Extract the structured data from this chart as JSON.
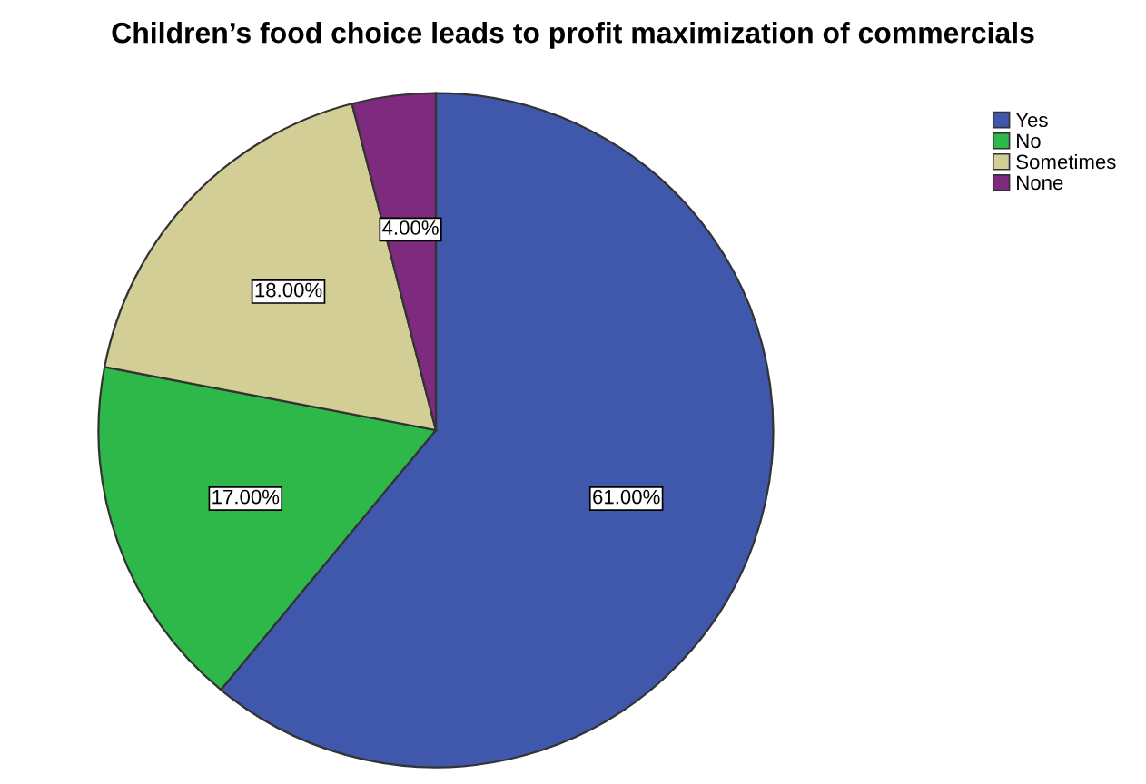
{
  "chart_data": {
    "type": "pie",
    "title": "Children’s food choice leads to profit maximization of commercials",
    "categories": [
      "Yes",
      "No",
      "Sometimes",
      "None"
    ],
    "values": [
      61,
      17,
      18,
      4
    ],
    "colors": [
      "#3f58ab",
      "#2fb84a",
      "#d3cd96",
      "#7e2a7e"
    ],
    "value_labels": [
      "61.00%",
      "17.00%",
      "18.00%",
      "4.00%"
    ],
    "legend": "top right"
  }
}
